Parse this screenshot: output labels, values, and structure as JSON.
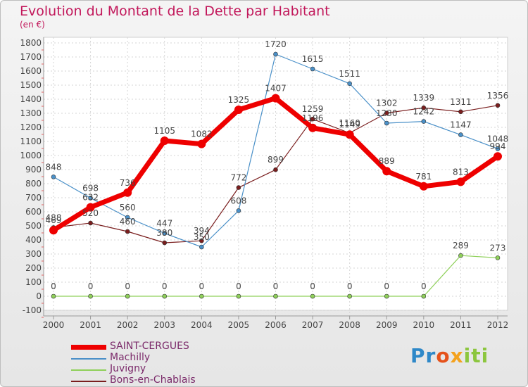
{
  "header": {
    "title": "Evolution du Montant de la Dette par Habitant",
    "subtitle": "(en €)"
  },
  "logo": {
    "part1": "Pr",
    "part2": "o",
    "part3": "x",
    "part4": "iti"
  },
  "chart_data": {
    "type": "line",
    "title": "Evolution du Montant de la Dette par Habitant",
    "subtitle": "(en €)",
    "xlabel": "",
    "ylabel": "",
    "x": [
      "2000",
      "2001",
      "2002",
      "2003",
      "2004",
      "2005",
      "2006",
      "2007",
      "2008",
      "2009",
      "2010",
      "2011",
      "2012"
    ],
    "ylim": [
      -100,
      1800
    ],
    "yticks": [
      -100,
      0,
      100,
      200,
      300,
      400,
      500,
      600,
      700,
      800,
      900,
      1000,
      1100,
      1200,
      1300,
      1400,
      1500,
      1600,
      1700,
      1800
    ],
    "grid": true,
    "legend_position": "bottom-left",
    "series": [
      {
        "name": "SAINT-CERGUES",
        "color": "#ee0000",
        "width": 7,
        "marker": 6,
        "values": [
          469,
          632,
          736,
          1105,
          1082,
          1325,
          1407,
          1196,
          1149,
          889,
          781,
          813,
          994
        ],
        "labels": [
          "469",
          "632",
          "736",
          "1105",
          "1082",
          "1325",
          "1407",
          "1196",
          "1149",
          "889",
          "781",
          "813",
          "994"
        ]
      },
      {
        "name": "Machilly",
        "color": "#4a90c8",
        "width": 1.2,
        "marker": 3,
        "values": [
          848,
          698,
          560,
          447,
          350,
          608,
          1720,
          1615,
          1511,
          1230,
          1242,
          1147,
          1048
        ],
        "labels": [
          "848",
          "698",
          "560",
          "447",
          "350",
          "608",
          "1720",
          "1615",
          "1511",
          "1230",
          "1242",
          "1147",
          "1048"
        ]
      },
      {
        "name": "Juvigny",
        "color": "#8fd05a",
        "width": 1.2,
        "marker": 3,
        "values": [
          0,
          0,
          0,
          0,
          0,
          0,
          0,
          0,
          0,
          0,
          0,
          289,
          273
        ],
        "labels": [
          "0",
          "0",
          "0",
          "0",
          "0",
          "0",
          "0",
          "0",
          "0",
          "0",
          "0",
          "289",
          "273"
        ]
      },
      {
        "name": "Bons-en-Chablais",
        "color": "#7a1e1e",
        "width": 1.2,
        "marker": 3,
        "values": [
          488,
          520,
          460,
          380,
          394,
          772,
          899,
          1259,
          1160,
          1302,
          1339,
          1311,
          1356
        ],
        "labels": [
          "488",
          "520",
          "460",
          "380",
          "394",
          "772",
          "899",
          "1259",
          "1160",
          "1302",
          "1339",
          "1311",
          "1356"
        ]
      }
    ]
  }
}
